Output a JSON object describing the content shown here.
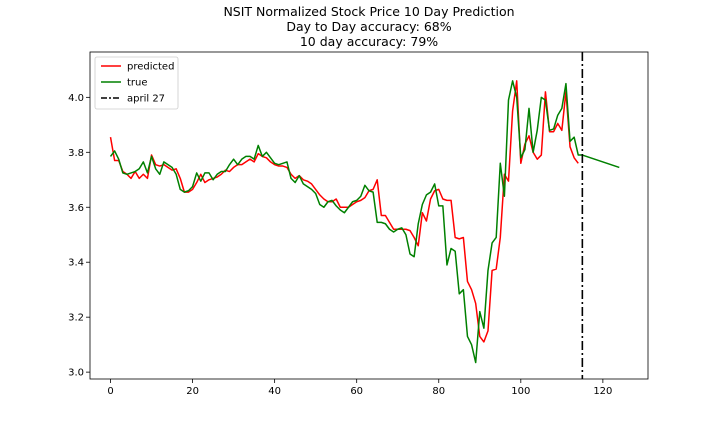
{
  "chart_data": {
    "type": "line",
    "title_lines": [
      "NSIT Normalized Stock Price 10 Day Prediction",
      "Day to Day accuracy: 68%",
      "10 day accuracy: 79%"
    ],
    "xlabel": "",
    "ylabel": "",
    "xlim": [
      -5,
      131
    ],
    "ylim": [
      2.975,
      4.165
    ],
    "xticks": [
      0,
      20,
      40,
      60,
      80,
      100,
      120
    ],
    "yticks": [
      3.0,
      3.2,
      3.4,
      3.6,
      3.8,
      4.0
    ],
    "ytick_labels": [
      "3.0",
      "3.2",
      "3.4",
      "3.6",
      "3.8",
      "4.0"
    ],
    "grid": false,
    "legend_position": "top-left",
    "series": [
      {
        "name": "predicted",
        "color": "#ff0000",
        "x_start": 0,
        "values": [
          3.855,
          3.77,
          3.77,
          3.73,
          3.72,
          3.705,
          3.73,
          3.705,
          3.72,
          3.705,
          3.79,
          3.755,
          3.75,
          3.755,
          3.745,
          3.735,
          3.74,
          3.705,
          3.655,
          3.655,
          3.665,
          3.69,
          3.72,
          3.69,
          3.7,
          3.705,
          3.71,
          3.72,
          3.735,
          3.73,
          3.745,
          3.755,
          3.755,
          3.765,
          3.775,
          3.765,
          3.795,
          3.785,
          3.78,
          3.765,
          3.755,
          3.75,
          3.75,
          3.745,
          3.72,
          3.705,
          3.715,
          3.7,
          3.695,
          3.685,
          3.665,
          3.645,
          3.63,
          3.62,
          3.62,
          3.63,
          3.6,
          3.6,
          3.6,
          3.61,
          3.62,
          3.625,
          3.635,
          3.66,
          3.665,
          3.7,
          3.57,
          3.57,
          3.545,
          3.52,
          3.52,
          3.52,
          3.52,
          3.515,
          3.49,
          3.46,
          3.58,
          3.55,
          3.63,
          3.66,
          3.665,
          3.63,
          3.625,
          3.625,
          3.49,
          3.485,
          3.49,
          3.33,
          3.3,
          3.25,
          3.13,
          3.11,
          3.15,
          3.37,
          3.375,
          3.49,
          3.72,
          3.695,
          3.95,
          4.06,
          3.76,
          3.83,
          3.86,
          3.8,
          3.775,
          3.79,
          4.02,
          3.875,
          3.875,
          3.905,
          3.88,
          4.02,
          3.82,
          3.78,
          3.76
        ]
      },
      {
        "name": "true",
        "color": "#008000",
        "x_start": 0,
        "values": [
          3.785,
          3.805,
          3.775,
          3.725,
          3.72,
          3.725,
          3.73,
          3.74,
          3.765,
          3.725,
          3.785,
          3.74,
          3.72,
          3.765,
          3.755,
          3.745,
          3.72,
          3.665,
          3.655,
          3.66,
          3.675,
          3.725,
          3.695,
          3.725,
          3.725,
          3.7,
          3.72,
          3.73,
          3.73,
          3.755,
          3.775,
          3.755,
          3.775,
          3.785,
          3.785,
          3.775,
          3.825,
          3.785,
          3.8,
          3.78,
          3.76,
          3.755,
          3.76,
          3.765,
          3.705,
          3.69,
          3.715,
          3.685,
          3.675,
          3.665,
          3.65,
          3.61,
          3.6,
          3.62,
          3.625,
          3.605,
          3.59,
          3.58,
          3.6,
          3.62,
          3.625,
          3.64,
          3.68,
          3.66,
          3.655,
          3.545,
          3.545,
          3.54,
          3.52,
          3.51,
          3.52,
          3.525,
          3.5,
          3.43,
          3.42,
          3.54,
          3.61,
          3.645,
          3.655,
          3.685,
          3.605,
          3.605,
          3.39,
          3.45,
          3.44,
          3.285,
          3.3,
          3.13,
          3.1,
          3.035,
          3.22,
          3.16,
          3.37,
          3.47,
          3.49,
          3.76,
          3.64,
          3.99,
          4.06,
          4.0,
          3.78,
          3.81,
          3.96,
          3.8,
          3.88,
          4.0,
          3.99,
          3.88,
          3.885,
          3.935,
          3.96,
          4.05,
          3.84,
          3.855,
          3.79,
          3.79,
          3.785,
          3.78,
          3.775,
          3.77,
          3.765,
          3.76,
          3.755,
          3.75,
          3.745
        ]
      },
      {
        "name": "april 27",
        "color": "#000000",
        "style": "dashdot",
        "vline_x": 115
      }
    ]
  }
}
